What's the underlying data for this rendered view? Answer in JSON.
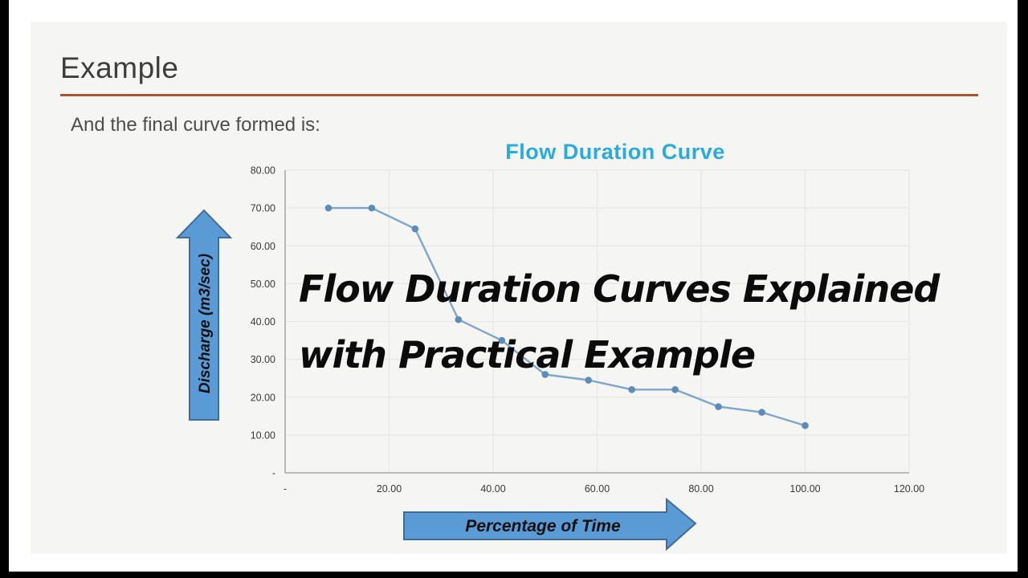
{
  "slide": {
    "heading": "Example",
    "intro": "And the final curve formed is:"
  },
  "overlay": {
    "line1": "Flow Duration Curves Explained",
    "line2": "with Practical Example"
  },
  "chart_data": {
    "type": "line",
    "title": "Flow Duration Curve",
    "xlabel": "Percentage of Time",
    "ylabel": "Discharge (m3/sec)",
    "xlim": [
      0,
      120
    ],
    "ylim": [
      0,
      80
    ],
    "grid": true,
    "legend": false,
    "x_ticks": {
      "values": [
        0,
        20,
        40,
        60,
        80,
        100,
        120
      ],
      "labels": [
        "-",
        "20.00",
        "40.00",
        "60.00",
        "80.00",
        "100.00",
        "120.00"
      ]
    },
    "y_ticks": {
      "values": [
        80,
        70,
        60,
        50,
        40,
        30,
        20,
        10,
        0
      ],
      "labels": [
        "80.00",
        "70.00",
        "60.00",
        "50.00",
        "40.00",
        "30.00",
        "20.00",
        "10.00",
        "-"
      ]
    },
    "series": [
      {
        "name": "Flow Duration Curve",
        "x": [
          8.33,
          16.67,
          25.0,
          33.33,
          41.67,
          50.0,
          58.33,
          66.67,
          75.0,
          83.33,
          91.67,
          100.0
        ],
        "y": [
          70,
          70,
          64.5,
          40.5,
          35,
          26,
          24.5,
          22,
          22,
          17.5,
          16,
          12.5
        ]
      }
    ]
  },
  "colors": {
    "slide_bg": "#f5f5f4",
    "divider": "#a9542f",
    "heading_text": "#3d3d3d",
    "body_text": "#4d4d4d",
    "chart_title": "#29abdf",
    "grid_line": "#e7e8e7",
    "axis_line": "#a8a8a8",
    "tick_text": "#3a3a3a",
    "line": "#7da6cb",
    "marker": "#5d8cb9",
    "arrow_fill": "#5b9bd5",
    "arrow_stroke": "#3f6c99",
    "overlay_text": "#0b0b0b"
  }
}
